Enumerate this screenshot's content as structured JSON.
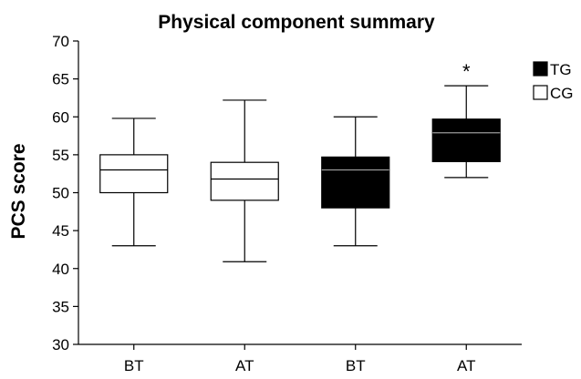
{
  "chart_data": {
    "type": "box",
    "title": "Physical component summary",
    "xlabel": "",
    "ylabel": "PCS score",
    "ylim": [
      30,
      70
    ],
    "yticks": [
      30,
      35,
      40,
      45,
      50,
      55,
      60,
      65,
      70
    ],
    "categories": [
      "BT",
      "AT",
      "BT",
      "AT"
    ],
    "boxes": [
      {
        "group": "CG",
        "min": 43,
        "q1": 50,
        "median": 53,
        "q3": 55,
        "max": 59.8,
        "color": "#ffffff"
      },
      {
        "group": "CG",
        "min": 40.9,
        "q1": 49,
        "median": 51.8,
        "q3": 54,
        "max": 62.2,
        "color": "#ffffff"
      },
      {
        "group": "TG",
        "min": 43,
        "q1": 48,
        "median": 53,
        "q3": 54.7,
        "max": 60,
        "color": "#000000"
      },
      {
        "group": "TG",
        "min": 52,
        "q1": 54.1,
        "median": 57.9,
        "q3": 59.7,
        "max": 64.1,
        "color": "#000000"
      }
    ],
    "annotations": [
      {
        "category_index": 3,
        "text": "*"
      }
    ],
    "legend": {
      "position": "top-right",
      "entries": [
        {
          "label": "TG",
          "color": "#000000"
        },
        {
          "label": "CG",
          "color": "#ffffff"
        }
      ]
    },
    "grid": false
  }
}
